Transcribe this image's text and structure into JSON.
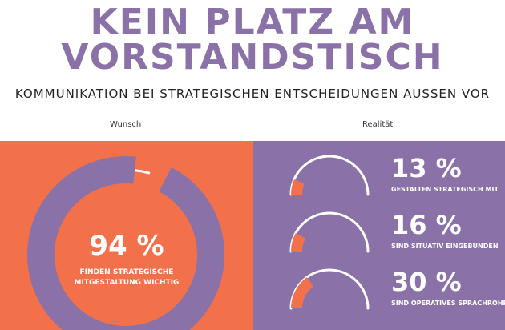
{
  "header": {
    "title_line1": "KEIN PLATZ AM",
    "title_line2": "VORSTANDSTISCH",
    "subtitle": "KOMMUNIKATION BEI STRATEGISCHEN ENTSCHEIDUNGEN AUSSEN VOR"
  },
  "columns": {
    "left": "Wunsch",
    "right": "Realität"
  },
  "colors": {
    "orange": "#f2704a",
    "purple": "#8a72a8",
    "white": "#ffffff",
    "title": "#8a72a8"
  },
  "chart_data": [
    {
      "type": "pie",
      "column": "Wunsch",
      "value": 94,
      "value_label": "94 %",
      "caption_line1": "FINDEN STRATEGISCHE",
      "caption_line2": "MITGESTALTUNG WICHTIG"
    },
    {
      "type": "pie",
      "column": "Realität",
      "items": [
        {
          "value": 13,
          "value_label": "13 %",
          "caption": "GESTALTEN STRATEGISCH MIT"
        },
        {
          "value": 16,
          "value_label": "16 %",
          "caption": "SIND SITUATIV EINGEBUNDEN"
        },
        {
          "value": 30,
          "value_label": "30 %",
          "caption": "SIND OPERATIVES SPRACHROHR"
        }
      ]
    }
  ]
}
